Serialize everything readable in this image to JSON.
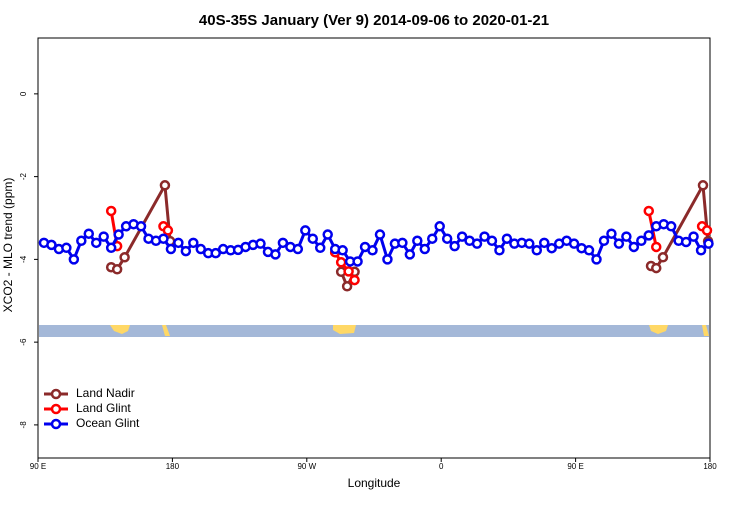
{
  "chart_data": {
    "type": "line",
    "title": "40S-35S January (Ver 9)   2014-09-06 to 2020-01-21",
    "x_label": "Longitude",
    "y_label": "XCO2 - MLO trend (ppm)",
    "xlim": [
      90,
      540
    ],
    "xticks": [
      {
        "value": 90,
        "label": "90 E"
      },
      {
        "value": 180,
        "label": "180"
      },
      {
        "value": 270,
        "label": "90 W"
      },
      {
        "value": 360,
        "label": "0"
      },
      {
        "value": 450,
        "label": "90 E"
      },
      {
        "value": 540,
        "label": "180"
      }
    ],
    "ylim": [
      -8.8,
      1.35
    ],
    "yticks": [
      0,
      -2,
      -4,
      -6,
      -8
    ],
    "legend": "bottomleft",
    "series": [
      {
        "name": "Land Nadir",
        "color": "#8b2a2a",
        "x": [
          139,
          143,
          148,
          175,
          178.5,
          null,
          293,
          297,
          302,
          null,
          500.5,
          504,
          508.5,
          535.3,
          538.7
        ],
        "values": [
          -4.19,
          -4.24,
          -3.95,
          -2.21,
          -3.56,
          null,
          -4.3,
          -4.65,
          -4.3,
          null,
          -4.16,
          -4.21,
          -3.95,
          -2.21,
          -3.56
        ]
      },
      {
        "name": "Land Glint",
        "color": "#ff0000",
        "x": [
          139,
          143,
          null,
          174,
          177,
          null,
          289,
          293,
          298,
          302,
          null,
          499,
          504,
          null,
          534.7,
          538
        ],
        "values": [
          -2.83,
          -3.68,
          null,
          -3.2,
          -3.3,
          null,
          -3.83,
          -4.07,
          -4.29,
          -4.5,
          null,
          -2.83,
          -3.7,
          null,
          -3.2,
          -3.3
        ]
      },
      {
        "name": "Ocean Glint",
        "color": "#0000ee",
        "x": [
          94,
          99,
          104,
          109,
          114,
          119,
          124,
          129,
          134,
          139,
          144,
          149,
          154,
          159,
          164,
          169,
          174,
          179,
          184,
          189,
          194,
          199,
          204,
          209,
          214,
          219,
          224,
          229,
          234,
          239,
          244,
          249,
          254,
          259,
          264,
          269,
          274,
          279,
          284,
          289,
          294,
          299,
          304,
          309,
          314,
          319,
          324,
          329,
          334,
          339,
          344,
          349,
          354,
          359,
          364,
          369,
          374,
          379,
          384,
          389,
          394,
          399,
          404,
          409,
          414,
          419,
          424,
          429,
          434,
          439,
          444,
          449,
          454,
          459,
          464,
          469,
          474,
          479,
          484,
          489,
          494,
          499,
          504,
          509,
          514,
          519,
          524,
          529,
          534,
          539
        ],
        "values": [
          -3.6,
          -3.65,
          -3.75,
          -3.72,
          -4.0,
          -3.55,
          -3.38,
          -3.6,
          -3.45,
          -3.72,
          -3.4,
          -3.2,
          -3.15,
          -3.2,
          -3.5,
          -3.55,
          -3.5,
          -3.75,
          -3.6,
          -3.8,
          -3.6,
          -3.75,
          -3.85,
          -3.85,
          -3.75,
          -3.78,
          -3.77,
          -3.7,
          -3.65,
          -3.62,
          -3.82,
          -3.88,
          -3.6,
          -3.7,
          -3.75,
          -3.3,
          -3.5,
          -3.72,
          -3.4,
          -3.75,
          -3.78,
          -4.05,
          -4.05,
          -3.7,
          -3.78,
          -3.4,
          -4.0,
          -3.62,
          -3.6,
          -3.88,
          -3.55,
          -3.75,
          -3.5,
          -3.2,
          -3.5,
          -3.68,
          -3.45,
          -3.55,
          -3.62,
          -3.45,
          -3.55,
          -3.78,
          -3.5,
          -3.62,
          -3.6,
          -3.62,
          -3.78,
          -3.6,
          -3.73,
          -3.62,
          -3.55,
          -3.62,
          -3.73,
          -3.78,
          -4.0,
          -3.55,
          -3.38,
          -3.62,
          -3.45,
          -3.7,
          -3.55,
          -3.42,
          -3.2,
          -3.15,
          -3.2,
          -3.55,
          -3.58,
          -3.45,
          -3.78,
          -3.62
        ]
      }
    ]
  }
}
